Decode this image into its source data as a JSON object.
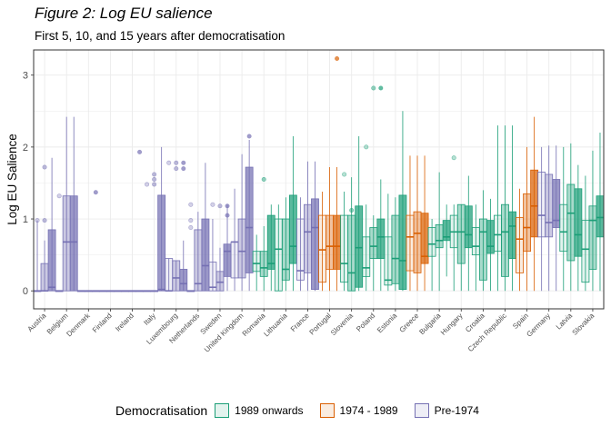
{
  "title": "Figure 2: Log EU salience",
  "subtitle": "First 5, 10, and 15 years after democratisation",
  "chart_data": {
    "type": "boxplot",
    "ylabel": "Log EU Salience",
    "xlabel": "",
    "ylim": [
      -0.25,
      3.35
    ],
    "yticks": [
      0,
      1,
      2,
      3
    ],
    "grid": true,
    "legend": {
      "title": "Democratisation",
      "position": "bottom",
      "entries": [
        {
          "name": "1989 onwards",
          "color": "#1b9e77"
        },
        {
          "name": "1974 - 1989",
          "color": "#d95f02"
        },
        {
          "name": "Pre-1974",
          "color": "#7570b3"
        }
      ]
    },
    "periods": [
      "5 years",
      "10 years",
      "15 years"
    ],
    "categories": [
      {
        "name": "Austria",
        "group": "Pre-1974",
        "boxes": [
          [
            0,
            0,
            0,
            0,
            0.98,
            [
              0.98
            ]
          ],
          [
            0,
            0,
            0,
            0.38,
            0.7,
            [
              0.98,
              1.72
            ]
          ],
          [
            0,
            0,
            0.05,
            0.85,
            1.85,
            []
          ]
        ]
      },
      {
        "name": "Belgium",
        "group": "Pre-1974",
        "boxes": [
          [
            0,
            0,
            0,
            0,
            0,
            [
              1.32
            ]
          ],
          [
            0,
            0,
            0.68,
            1.32,
            2.42,
            []
          ],
          [
            0,
            0,
            0.68,
            1.32,
            2.42,
            []
          ]
        ]
      },
      {
        "name": "Denmark",
        "group": "Pre-1974",
        "boxes": [
          [
            0,
            0,
            0,
            0,
            0,
            []
          ],
          [
            0,
            0,
            0,
            0,
            0,
            []
          ],
          [
            0,
            0,
            0,
            0,
            0,
            [
              1.37
            ]
          ]
        ]
      },
      {
        "name": "Finland",
        "group": "Pre-1974",
        "boxes": [
          [
            0,
            0,
            0,
            0,
            0,
            []
          ],
          [
            0,
            0,
            0,
            0,
            0,
            []
          ],
          [
            0,
            0,
            0,
            0,
            0,
            []
          ]
        ]
      },
      {
        "name": "Ireland",
        "group": "Pre-1974",
        "boxes": [
          [
            0,
            0,
            0,
            0,
            0,
            []
          ],
          [
            0,
            0,
            0,
            0,
            0,
            []
          ],
          [
            0,
            0,
            0,
            0,
            0,
            [
              1.93
            ]
          ]
        ]
      },
      {
        "name": "Italy",
        "group": "Pre-1974",
        "boxes": [
          [
            0,
            0,
            0,
            0,
            0,
            [
              1.48
            ]
          ],
          [
            0,
            0,
            0,
            0,
            0,
            [
              1.48,
              1.55,
              1.62
            ]
          ],
          [
            0,
            0,
            0.02,
            1.33,
            2.0,
            []
          ]
        ]
      },
      {
        "name": "Luxembourg",
        "group": "Pre-1974",
        "boxes": [
          [
            0,
            0,
            0,
            0.45,
            0.45,
            [
              1.78
            ]
          ],
          [
            0,
            0,
            0.18,
            0.42,
            0.42,
            [
              1.7,
              1.78
            ]
          ],
          [
            0,
            0,
            0.1,
            0.3,
            0.7,
            [
              1.7,
              1.78
            ]
          ]
        ]
      },
      {
        "name": "Netherlands",
        "group": "Pre-1974",
        "boxes": [
          [
            0,
            0,
            0,
            0,
            0,
            [
              0.88,
              0.98,
              1.2
            ]
          ],
          [
            0,
            0,
            0.1,
            0.85,
            1.1,
            []
          ],
          [
            0,
            0,
            0.35,
            1.0,
            1.78,
            []
          ]
        ]
      },
      {
        "name": "Sweden",
        "group": "Pre-1974",
        "boxes": [
          [
            0,
            0,
            0.05,
            0.4,
            1.0,
            [
              1.2
            ]
          ],
          [
            0,
            0,
            0.12,
            0.27,
            0.6,
            [
              1.18
            ]
          ],
          [
            0,
            0.2,
            0.55,
            0.65,
            1.2,
            [
              1.05,
              1.18
            ]
          ]
        ]
      },
      {
        "name": "United Kingdom",
        "group": "Pre-1974",
        "boxes": [
          [
            0,
            0.18,
            0.68,
            0.68,
            1.42,
            []
          ],
          [
            0,
            0.18,
            0.55,
            1.0,
            1.9,
            []
          ],
          [
            0,
            0.25,
            0.88,
            1.72,
            2.1,
            [
              2.15
            ]
          ]
        ]
      },
      {
        "name": "Romania",
        "group": "1989 onwards",
        "boxes": [
          [
            0,
            0.27,
            0.38,
            0.55,
            0.78,
            []
          ],
          [
            0,
            0.2,
            0.32,
            0.55,
            0.9,
            [
              1.55
            ]
          ],
          [
            0,
            0.3,
            0.38,
            1.05,
            1.2,
            []
          ]
        ]
      },
      {
        "name": "Lithuania",
        "group": "1989 onwards",
        "boxes": [
          [
            0,
            0,
            0.58,
            1.0,
            1.2,
            []
          ],
          [
            0,
            0.15,
            0.3,
            1.0,
            1.3,
            []
          ],
          [
            0,
            0.38,
            0.62,
            1.33,
            2.15,
            []
          ]
        ]
      },
      {
        "name": "France",
        "group": "Pre-1974",
        "boxes": [
          [
            0,
            0.15,
            0.28,
            1.0,
            1.3,
            []
          ],
          [
            0,
            0.25,
            0.82,
            1.2,
            1.8,
            []
          ],
          [
            0,
            0.02,
            0.88,
            1.28,
            1.8,
            []
          ]
        ]
      },
      {
        "name": "Portugal",
        "group": "1974 - 1989",
        "boxes": [
          [
            0,
            0.12,
            0.57,
            1.05,
            1.38,
            []
          ],
          [
            0,
            0.3,
            0.62,
            1.05,
            1.72,
            []
          ],
          [
            0,
            0.3,
            0.62,
            1.05,
            1.72,
            [
              3.23
            ]
          ]
        ]
      },
      {
        "name": "Slovenia",
        "group": "1989 onwards",
        "boxes": [
          [
            0,
            0.12,
            0.38,
            1.05,
            1.38,
            [
              1.62
            ]
          ],
          [
            0,
            0,
            0.25,
            1.05,
            1.58,
            [
              1.12
            ]
          ],
          [
            0,
            0.05,
            0.6,
            1.18,
            2.15,
            []
          ]
        ]
      },
      {
        "name": "Poland",
        "group": "1989 onwards",
        "boxes": [
          [
            0,
            0.2,
            0.32,
            0.75,
            1.2,
            [
              2.0
            ]
          ],
          [
            0,
            0.45,
            0.62,
            0.88,
            1.05,
            [
              2.82
            ]
          ],
          [
            0,
            0.45,
            0.75,
            1.0,
            1.55,
            [
              2.82
            ]
          ]
        ]
      },
      {
        "name": "Estonia",
        "group": "1989 onwards",
        "boxes": [
          [
            0,
            0.08,
            0.15,
            0.75,
            1.35,
            []
          ],
          [
            0,
            0.1,
            0.45,
            1.05,
            1.3,
            []
          ],
          [
            0,
            0.02,
            0.42,
            1.33,
            2.5,
            []
          ]
        ]
      },
      {
        "name": "Greece",
        "group": "1974 - 1989",
        "boxes": [
          [
            0,
            0.28,
            0.75,
            1.05,
            1.88,
            []
          ],
          [
            0,
            0.25,
            0.8,
            1.1,
            1.88,
            []
          ],
          [
            0,
            0.38,
            0.48,
            1.08,
            1.88,
            []
          ]
        ]
      },
      {
        "name": "Bulgaria",
        "group": "1989 onwards",
        "boxes": [
          [
            0,
            0.48,
            0.65,
            0.88,
            1.0,
            []
          ],
          [
            0,
            0.6,
            0.7,
            0.92,
            1.65,
            []
          ],
          [
            0.2,
            0.7,
            0.75,
            0.98,
            1.2,
            []
          ]
        ]
      },
      {
        "name": "Hungary",
        "group": "1989 onwards",
        "boxes": [
          [
            0,
            0.6,
            0.82,
            1.05,
            1.2,
            [
              1.85
            ]
          ],
          [
            0,
            0.38,
            0.82,
            1.2,
            1.2,
            []
          ],
          [
            0,
            0.6,
            0.78,
            1.18,
            1.6,
            []
          ]
        ]
      },
      {
        "name": "Croatia",
        "group": "1989 onwards",
        "boxes": [
          [
            0,
            0.5,
            0.62,
            0.88,
            1.2,
            []
          ],
          [
            0,
            0.15,
            0.82,
            1.0,
            1.4,
            []
          ],
          [
            0,
            0.52,
            0.62,
            0.98,
            1.28,
            []
          ]
        ]
      },
      {
        "name": "Czech Republic",
        "group": "1989 onwards",
        "boxes": [
          [
            0,
            0.55,
            0.78,
            1.05,
            2.3,
            []
          ],
          [
            0,
            0.2,
            0.82,
            1.2,
            2.3,
            []
          ],
          [
            0,
            0.45,
            0.9,
            1.1,
            2.3,
            []
          ]
        ]
      },
      {
        "name": "Spain",
        "group": "1974 - 1989",
        "boxes": [
          [
            0,
            0.25,
            0.72,
            1.02,
            1.42,
            []
          ],
          [
            0,
            0.55,
            0.88,
            1.35,
            2.0,
            []
          ],
          [
            0,
            0.75,
            1.18,
            1.68,
            2.42,
            []
          ]
        ]
      },
      {
        "name": "Germany",
        "group": "Pre-1974",
        "boxes": [
          [
            0,
            0.75,
            1.05,
            1.65,
            2.0,
            []
          ],
          [
            0,
            0.75,
            0.95,
            1.62,
            2.02,
            []
          ],
          [
            0,
            0.88,
            0.98,
            1.55,
            2.02,
            []
          ]
        ]
      },
      {
        "name": "Latvia",
        "group": "1989 onwards",
        "boxes": [
          [
            0,
            0.55,
            0.82,
            1.2,
            2.0,
            []
          ],
          [
            0,
            0.42,
            1.08,
            1.48,
            2.05,
            []
          ],
          [
            0,
            0.48,
            0.78,
            1.42,
            1.75,
            []
          ]
        ]
      },
      {
        "name": "Slovakia",
        "group": "1989 onwards",
        "boxes": [
          [
            0,
            0.12,
            0.58,
            0.98,
            1.6,
            []
          ],
          [
            0,
            0.3,
            0.98,
            1.18,
            1.95,
            []
          ],
          [
            0,
            0.75,
            1.02,
            1.32,
            2.2,
            []
          ]
        ]
      }
    ]
  }
}
